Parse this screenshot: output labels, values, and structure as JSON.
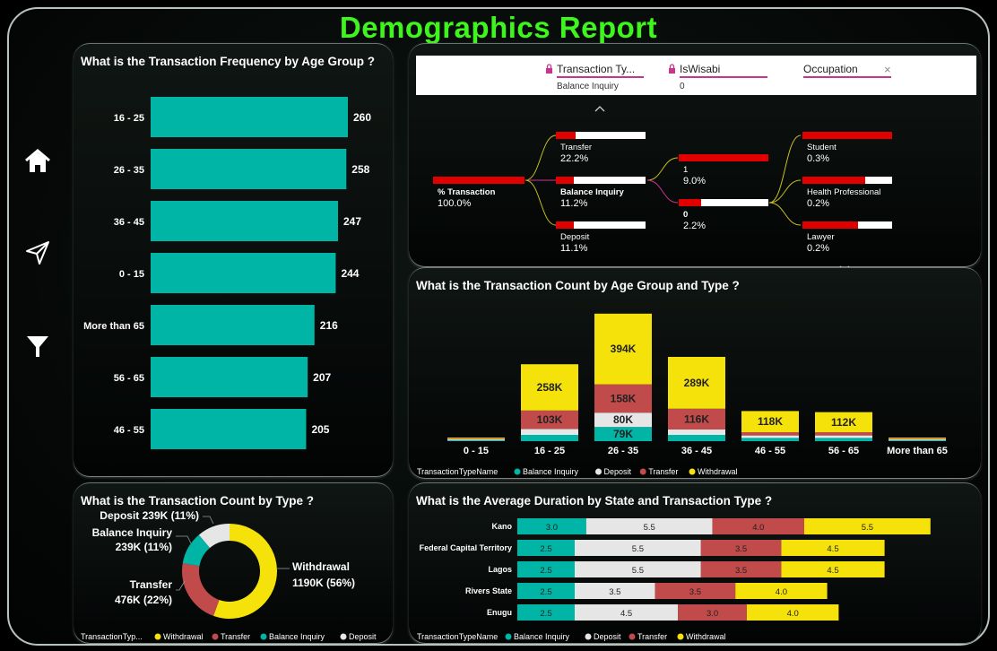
{
  "page_title": "Demographics Report",
  "nav": {
    "icons": [
      "home-icon",
      "send-icon",
      "filter-icon"
    ]
  },
  "filters": [
    {
      "label": "Transaction Ty...",
      "value": "Balance Inquiry",
      "locked": true
    },
    {
      "label": "IsWisabi",
      "value": "0",
      "locked": true
    },
    {
      "label": "Occupation",
      "value": "",
      "locked": false
    }
  ],
  "tree": {
    "root": {
      "label": "% Transaction",
      "value": "100.0%"
    },
    "level1": [
      {
        "label": "Transfer",
        "value": "22.2%",
        "fill": 0.22
      },
      {
        "label": "Balance Inquiry",
        "value": "11.2%",
        "fill": 0.2
      },
      {
        "label": "Deposit",
        "value": "11.1%",
        "fill": 0.2
      }
    ],
    "level2": [
      {
        "label": "1",
        "value": "9.0%",
        "fill": 1.0
      },
      {
        "label": "0",
        "value": "2.2%",
        "fill": 0.25
      }
    ],
    "level3": [
      {
        "label": "Student",
        "value": "0.3%",
        "fill": 1.0
      },
      {
        "label": "Health Professional",
        "value": "0.2%",
        "fill": 0.7
      },
      {
        "label": "Lawyer",
        "value": "0.2%",
        "fill": 0.62
      }
    ]
  },
  "chart_data": [
    {
      "type": "bar",
      "orientation": "horizontal",
      "title": "What is the Transaction Frequency by Age Group ?",
      "categories": [
        "16 - 25",
        "26 - 35",
        "36 - 45",
        "0 - 15",
        "More than 65",
        "56 - 65",
        "46 - 55"
      ],
      "values": [
        260,
        258,
        247,
        244,
        216,
        207,
        205
      ],
      "color": "#00b5a5"
    },
    {
      "type": "bar",
      "stacked": true,
      "title": "What is the Transaction Count by Age Group and Type ?",
      "categories": [
        "0 - 15",
        "16 - 25",
        "26 - 35",
        "36 - 45",
        "46 - 55",
        "56 - 65",
        "More than 65"
      ],
      "legend_title": "TransactionTypeName",
      "series": [
        {
          "name": "Balance Inquiry",
          "color": "#00b5a5",
          "values": [
            3,
            35,
            79,
            35,
            18,
            18,
            3
          ],
          "labels": [
            "",
            "",
            "79K",
            "",
            "",
            "",
            ""
          ]
        },
        {
          "name": "Deposit",
          "color": "#e6e6e6",
          "values": [
            3,
            33,
            80,
            30,
            14,
            14,
            3
          ],
          "labels": [
            "",
            "",
            "80K",
            "",
            "",
            "",
            ""
          ]
        },
        {
          "name": "Transfer",
          "color": "#c14a4a",
          "values": [
            3,
            103,
            158,
            116,
            18,
            18,
            3
          ],
          "labels": [
            "",
            "103K",
            "158K",
            "116K",
            "",
            "",
            ""
          ]
        },
        {
          "name": "Withdrawal",
          "color": "#f5e20a",
          "values": [
            3,
            258,
            394,
            289,
            118,
            112,
            3
          ],
          "labels": [
            "",
            "258K",
            "394K",
            "289K",
            "118K",
            "112K",
            ""
          ]
        }
      ]
    },
    {
      "type": "pie",
      "donut": true,
      "title": "What is the Transaction Count by Type ?",
      "legend_title": "TransactionTyp...",
      "slices": [
        {
          "name": "Withdrawal",
          "value": 1190,
          "pct": 56,
          "color": "#f5e20a",
          "label": "Withdrawal",
          "label2": "1190K (56%)"
        },
        {
          "name": "Transfer",
          "value": 476,
          "pct": 22,
          "color": "#c14a4a",
          "label": "Transfer",
          "label2": "476K (22%)"
        },
        {
          "name": "Balance Inquiry",
          "value": 239,
          "pct": 11,
          "color": "#00b5a5",
          "label": "Balance Inquiry",
          "label2": "239K (11%)"
        },
        {
          "name": "Deposit",
          "value": 239,
          "pct": 11,
          "color": "#e6e6e6",
          "label": "Deposit 239K (11%)",
          "label2": ""
        }
      ]
    },
    {
      "type": "bar",
      "orientation": "horizontal",
      "stacked": true,
      "title": "What is the Average Duration by State and Transaction Type ?",
      "categories": [
        "Kano",
        "Federal Capital Territory",
        "Lagos",
        "Rivers State",
        "Enugu"
      ],
      "legend_title": "TransactionTypeName",
      "series": [
        {
          "name": "Balance Inquiry",
          "color": "#00b5a5",
          "values": [
            3.0,
            2.5,
            2.5,
            2.5,
            2.5
          ]
        },
        {
          "name": "Deposit",
          "color": "#e6e6e6",
          "values": [
            5.5,
            5.5,
            5.5,
            3.5,
            4.5
          ]
        },
        {
          "name": "Transfer",
          "color": "#c14a4a",
          "values": [
            4.0,
            3.5,
            3.5,
            3.5,
            3.0
          ]
        },
        {
          "name": "Withdrawal",
          "color": "#f5e20a",
          "values": [
            5.5,
            4.5,
            4.5,
            4.0,
            4.0
          ]
        }
      ]
    }
  ]
}
